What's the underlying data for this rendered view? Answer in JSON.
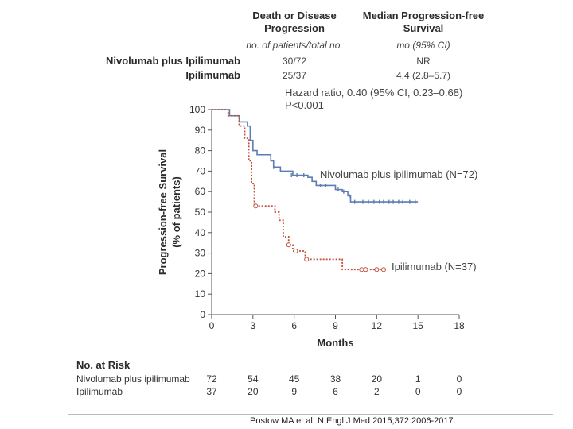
{
  "table": {
    "col1_header": "Death or Disease Progression",
    "col1_header_line1": "Death or Disease",
    "col1_header_line2": "Progression",
    "col2_header_line1": "Median Progression-free",
    "col2_header_line2": "Survival",
    "col1_sub": "no. of patients/total no.",
    "col2_sub": "mo (95% CI)",
    "rows": [
      {
        "label": "Nivolumab plus Ipilimumab",
        "events": "30/72",
        "median": "NR"
      },
      {
        "label": "Ipilimumab",
        "events": "25/37",
        "median": "4.4 (2.8–5.7)"
      }
    ],
    "hazard_ratio": "Hazard ratio, 0.40 (95% CI, 0.23–0.68)",
    "p_value": "P<0.001"
  },
  "risk_table": {
    "title": "No. at Risk",
    "rows": [
      {
        "label": "Nivolumab plus ipilimumab",
        "values": [
          "72",
          "54",
          "45",
          "38",
          "20",
          "1",
          "0"
        ]
      },
      {
        "label": "Ipilimumab",
        "values": [
          "37",
          "20",
          "9",
          "6",
          "2",
          "0",
          "0"
        ]
      }
    ]
  },
  "citation": "Postow MA et al. N Engl J Med 2015;372:2006-2017.",
  "colors": {
    "nivo_ipi": "#5b7db3",
    "ipi": "#c0503a",
    "axis": "#555555"
  },
  "chart_data": {
    "type": "line",
    "subtype": "kaplan-meier",
    "xlabel": "Months",
    "ylabel_line1": "Progression-free Survival",
    "ylabel_line2": "(% of patients)",
    "xlim": [
      0,
      18
    ],
    "ylim": [
      0,
      100
    ],
    "xticks": [
      0,
      3,
      6,
      9,
      12,
      15,
      18
    ],
    "yticks": [
      0,
      10,
      20,
      30,
      40,
      50,
      60,
      70,
      80,
      90,
      100
    ],
    "grid": false,
    "series": [
      {
        "name": "Nivolumab plus ipilimumab (N=72)",
        "style": "solid",
        "color": "#5b7db3",
        "steps": [
          [
            0,
            100
          ],
          [
            1.3,
            97
          ],
          [
            2,
            94
          ],
          [
            2.6,
            92
          ],
          [
            2.8,
            85
          ],
          [
            3,
            80
          ],
          [
            3.3,
            78
          ],
          [
            4.3,
            75
          ],
          [
            4.5,
            72
          ],
          [
            5,
            70
          ],
          [
            5.9,
            68
          ],
          [
            7,
            67
          ],
          [
            7.3,
            65
          ],
          [
            7.6,
            63
          ],
          [
            9,
            61
          ],
          [
            9.5,
            60
          ],
          [
            9.9,
            58
          ],
          [
            10.1,
            55
          ],
          [
            15,
            55
          ]
        ],
        "censored": [
          [
            4.5,
            72
          ],
          [
            5.8,
            68
          ],
          [
            6.2,
            68
          ],
          [
            6.7,
            68
          ],
          [
            7.9,
            63
          ],
          [
            8.3,
            63
          ],
          [
            9.2,
            61
          ],
          [
            9.6,
            60
          ],
          [
            10,
            58
          ],
          [
            10.4,
            55
          ],
          [
            11,
            55
          ],
          [
            11.4,
            55
          ],
          [
            11.8,
            55
          ],
          [
            12.2,
            55
          ],
          [
            12.5,
            55
          ],
          [
            12.9,
            55
          ],
          [
            13.2,
            55
          ],
          [
            13.6,
            55
          ],
          [
            13.9,
            55
          ],
          [
            14.4,
            55
          ],
          [
            14.8,
            55
          ]
        ]
      },
      {
        "name": "Ipilimumab (N=37)",
        "style": "dotted",
        "color": "#c0503a",
        "steps": [
          [
            0,
            100
          ],
          [
            1.2,
            97
          ],
          [
            2,
            92
          ],
          [
            2.4,
            86
          ],
          [
            2.7,
            75
          ],
          [
            2.9,
            64
          ],
          [
            3.1,
            53
          ],
          [
            4.6,
            50
          ],
          [
            4.9,
            46
          ],
          [
            5.2,
            38
          ],
          [
            5.6,
            34
          ],
          [
            5.9,
            31
          ],
          [
            6.8,
            27
          ],
          [
            9.5,
            22
          ],
          [
            12.5,
            22
          ]
        ],
        "censored": [
          [
            3.2,
            53
          ],
          [
            5.6,
            34
          ],
          [
            6.1,
            31
          ],
          [
            6.9,
            27
          ],
          [
            10.9,
            22
          ],
          [
            11.2,
            22
          ],
          [
            12,
            22
          ],
          [
            12.5,
            22
          ]
        ]
      }
    ],
    "annotations": [
      {
        "text": "Nivolumab plus ipilimumab (N=72)",
        "series": 0
      },
      {
        "text": "Ipilimumab (N=37)",
        "series": 1
      }
    ]
  }
}
